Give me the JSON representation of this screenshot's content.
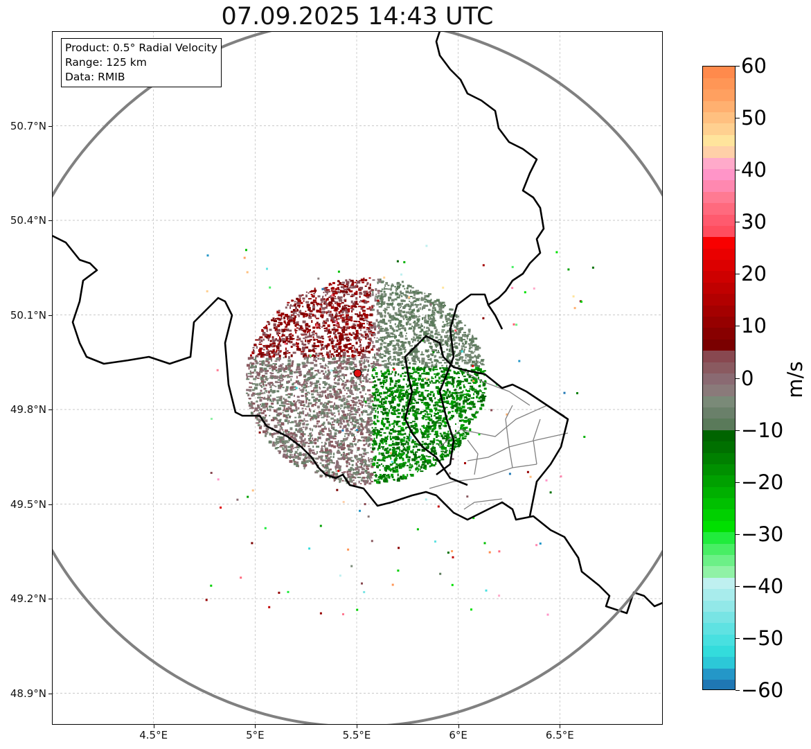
{
  "title": "07.09.2025 14:43 UTC",
  "info_box": {
    "product": "Product: 0.5° Radial Velocity",
    "range": "Range: 125 km",
    "source": "Data: RMIB"
  },
  "map": {
    "lon_range": [
      4.0,
      7.0
    ],
    "lat_range": [
      48.8,
      51.0
    ],
    "grid": true,
    "lat_ticks": [
      {
        "value": 48.9,
        "label": "48.9°N"
      },
      {
        "value": 49.2,
        "label": "49.2°N"
      },
      {
        "value": 49.5,
        "label": "49.5°N"
      },
      {
        "value": 49.8,
        "label": "49.8°N"
      },
      {
        "value": 50.1,
        "label": "50.1°N"
      },
      {
        "value": 50.4,
        "label": "50.4°N"
      },
      {
        "value": 50.7,
        "label": "50.7°N"
      }
    ],
    "lon_ticks": [
      {
        "value": 4.5,
        "label": "4.5°E"
      },
      {
        "value": 5.0,
        "label": "5°E"
      },
      {
        "value": 5.5,
        "label": "5.5°E"
      },
      {
        "value": 6.0,
        "label": "6°E"
      },
      {
        "value": 6.5,
        "label": "6.5°E"
      }
    ],
    "radar_site": {
      "lon": 5.505,
      "lat": 49.915,
      "color": "#e01010"
    },
    "range_ring_color": "#808080",
    "border_color": "#000000",
    "admin_border_color": "#808080"
  },
  "colorbar": {
    "unit": "m/s",
    "min": -60,
    "max": 60,
    "ticks": [
      {
        "value": 60,
        "label": "60"
      },
      {
        "value": 50,
        "label": "50"
      },
      {
        "value": 40,
        "label": "40"
      },
      {
        "value": 30,
        "label": "30"
      },
      {
        "value": 20,
        "label": "20"
      },
      {
        "value": 10,
        "label": "10"
      },
      {
        "value": 0,
        "label": "0"
      },
      {
        "value": -10,
        "label": "−10"
      },
      {
        "value": -20,
        "label": "−20"
      },
      {
        "value": -30,
        "label": "−30"
      },
      {
        "value": -40,
        "label": "−40"
      },
      {
        "value": -50,
        "label": "−50"
      },
      {
        "value": -60,
        "label": "−60"
      }
    ],
    "colors": [
      "#1f77b4",
      "#2497c8",
      "#2cc8d8",
      "#33dcdc",
      "#48e0e0",
      "#5fe2e2",
      "#78e4e4",
      "#92e8e8",
      "#a8ecec",
      "#bff0f0",
      "#90f2a6",
      "#6cf087",
      "#48ee64",
      "#20ec3c",
      "#00e000",
      "#00d000",
      "#00c000",
      "#00b000",
      "#00a000",
      "#009000",
      "#008000",
      "#007000",
      "#006400",
      "#5a7a5a",
      "#6a806a",
      "#7a8a78",
      "#8a7a7a",
      "#8a6a72",
      "#8a5a60",
      "#884850",
      "#7a0000",
      "#880000",
      "#960000",
      "#a40000",
      "#b20000",
      "#c00000",
      "#ce0000",
      "#dc0000",
      "#ea0000",
      "#f80000",
      "#ff4d5e",
      "#ff5a6e",
      "#ff6a7e",
      "#ff7a92",
      "#ff88b0",
      "#ff95c8",
      "#ffaaca",
      "#ffd0a8",
      "#ffe49c",
      "#ffd090",
      "#ffc080",
      "#ffb070",
      "#ffa060",
      "#ff9656",
      "#ff8a4c"
    ]
  }
}
